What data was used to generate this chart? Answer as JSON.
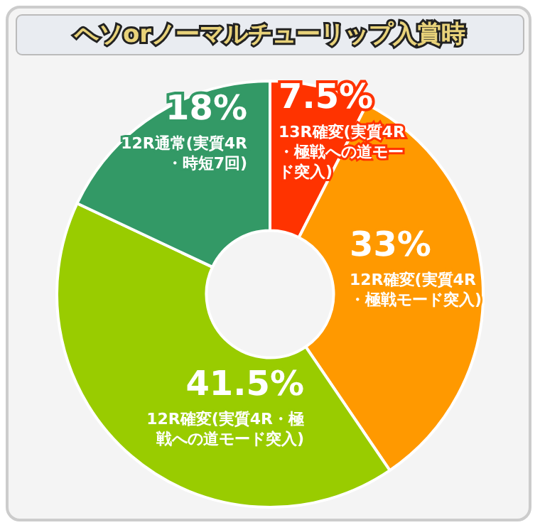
{
  "chart_data": {
    "type": "donut",
    "title": "ヘソorノーマルチューリップ入賞時",
    "categories": [
      "13R確変(実質4R・極戦への道モード突入)",
      "12R確変(実質4R・極戦モード突入)",
      "12R確変(実質4R・極戦への道モード突入)",
      "12R通常(実質4R・時短7回)"
    ],
    "values": [
      7.5,
      33,
      41.5,
      18
    ],
    "value_labels": [
      "7.5%",
      "33%",
      "41.5%",
      "18%"
    ],
    "colors": [
      "#ff3300",
      "#ff9900",
      "#99cc00",
      "#339966"
    ],
    "data_labels": true,
    "legend": false
  }
}
